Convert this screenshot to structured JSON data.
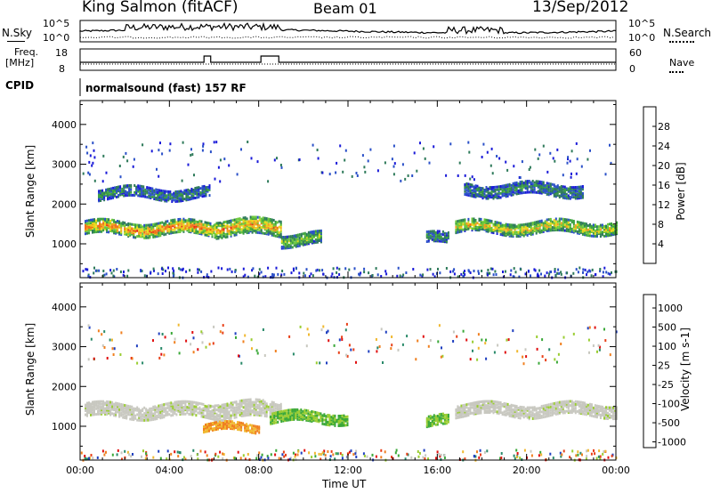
{
  "header": {
    "station": "King Salmon (fitACF)",
    "beam": "Beam 01",
    "date": "13/Sep/2012"
  },
  "strip_nsky": {
    "left_label": "N.Sky",
    "right_label": "N.Search",
    "left_ticks": [
      "10^5",
      "10^0"
    ],
    "right_ticks": [
      "10^5",
      "10^0"
    ]
  },
  "strip_freq": {
    "left_label_1": "Freq.",
    "left_label_2": "[MHz]",
    "right_label": "Nave",
    "left_ticks": [
      "18",
      "8"
    ],
    "right_ticks": [
      "60",
      "0"
    ]
  },
  "cpid": {
    "label": "CPID",
    "value": "normalsound (fast) 157 RF"
  },
  "chart_data": [
    {
      "type": "heatmap",
      "name": "power",
      "ylabel": "Slant Range [km]",
      "xlabel": "Time UT",
      "x_ticks": [
        "00:00",
        "04:00",
        "08:00",
        "12:00",
        "16:00",
        "20:00",
        "00:00"
      ],
      "y_ticks": [
        1000,
        2000,
        3000,
        4000
      ],
      "ylim": [
        150,
        4600
      ],
      "xlim_hours": [
        0,
        24
      ],
      "colorbar": {
        "label": "Power [dB]",
        "ticks": [
          4,
          8,
          12,
          16,
          20,
          24,
          28
        ],
        "colors": [
          "#1a1ad8",
          "#2a50c8",
          "#2e7a5a",
          "#3aa040",
          "#6cc83a",
          "#e8d81c",
          "#f0a020",
          "#f07018",
          "#e83018",
          "#d81010"
        ]
      },
      "echo_bands": [
        {
          "t_start": 0.2,
          "t_end": 6.0,
          "range_center": 1420,
          "range_width": 320,
          "level": 18
        },
        {
          "t_start": 6.0,
          "t_end": 9.0,
          "range_center": 1450,
          "range_width": 420,
          "level": 16
        },
        {
          "t_start": 9.0,
          "t_end": 10.8,
          "range_center": 1150,
          "range_width": 300,
          "level": 10
        },
        {
          "t_start": 16.8,
          "t_end": 24.0,
          "range_center": 1450,
          "range_width": 300,
          "level": 14
        },
        {
          "t_start": 0.8,
          "t_end": 5.8,
          "range_center": 2300,
          "range_width": 250,
          "level": 6
        },
        {
          "t_start": 17.2,
          "t_end": 22.5,
          "range_center": 2400,
          "range_width": 300,
          "level": 6
        },
        {
          "t_start": 15.5,
          "t_end": 16.5,
          "range_center": 1150,
          "range_width": 250,
          "level": 6
        }
      ]
    },
    {
      "type": "heatmap",
      "name": "velocity",
      "ylabel": "Slant Range [km]",
      "xlabel": "Time UT",
      "x_ticks": [
        "00:00",
        "04:00",
        "08:00",
        "12:00",
        "16:00",
        "20:00",
        "00:00"
      ],
      "y_ticks": [
        1000,
        2000,
        3000,
        4000
      ],
      "ylim": [
        150,
        4600
      ],
      "xlim_hours": [
        0,
        24
      ],
      "colorbar": {
        "label": "Velocity [m s-1]",
        "ticks": [
          "1000",
          "500",
          "100",
          "25",
          "-25",
          "-100",
          "-500",
          "-1000"
        ],
        "colors": [
          "#2040c0",
          "#2a8a6a",
          "#3aa838",
          "#9acd32",
          "#c8c8c0",
          "#f0b830",
          "#f08020",
          "#e84018",
          "#e01010"
        ]
      },
      "echo_bands": [
        {
          "t_start": 0.2,
          "t_end": 6.0,
          "range_center": 1420,
          "range_width": 320,
          "class": "ground"
        },
        {
          "t_start": 6.0,
          "t_end": 9.0,
          "range_center": 1450,
          "range_width": 420,
          "class": "ground"
        },
        {
          "t_start": 16.8,
          "t_end": 24.0,
          "range_center": 1450,
          "range_width": 300,
          "class": "ground"
        },
        {
          "t_start": 5.5,
          "t_end": 8.0,
          "range_center": 1000,
          "range_width": 200,
          "class": "away"
        },
        {
          "t_start": 8.5,
          "t_end": 12.0,
          "range_center": 1250,
          "range_width": 250,
          "class": "toward"
        },
        {
          "t_start": 15.5,
          "t_end": 16.5,
          "range_center": 1150,
          "range_width": 250,
          "class": "toward"
        }
      ]
    }
  ]
}
